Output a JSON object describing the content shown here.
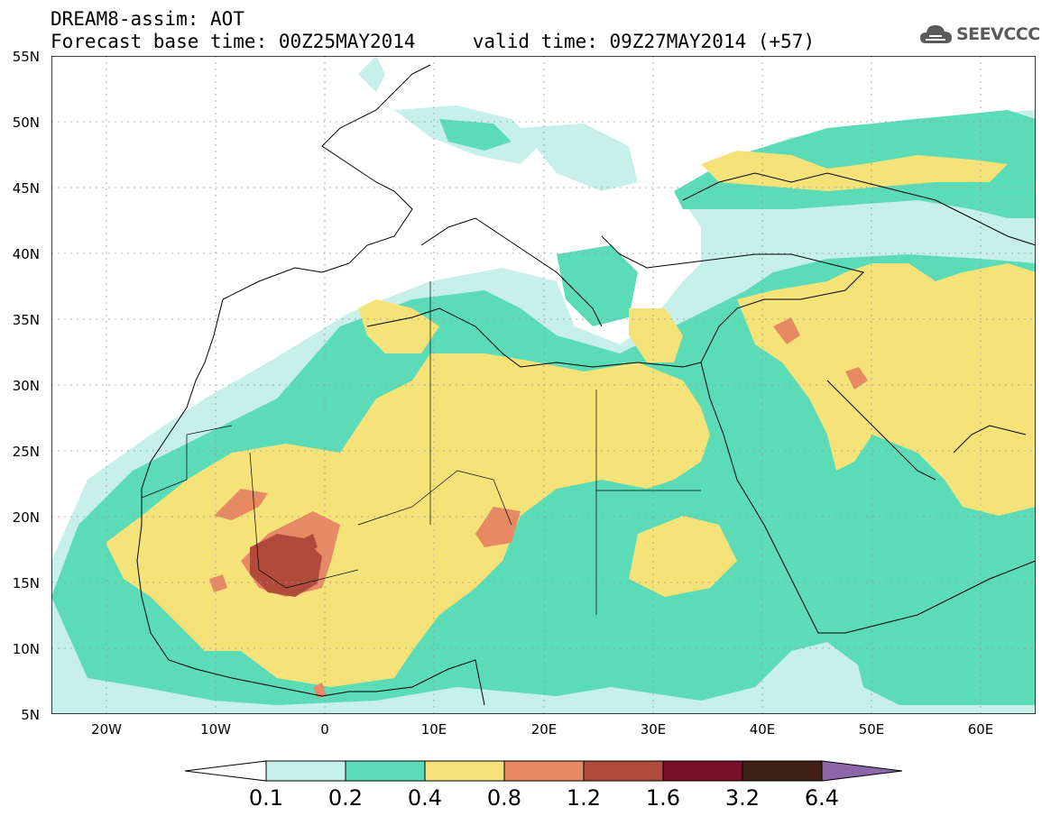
{
  "header": {
    "line1": "DREAM8-assim: AOT",
    "line2": "Forecast base time: 00Z25MAY2014     valid time: 09Z27MAY2014 (+57)"
  },
  "logo": {
    "text": "SEEVCCC",
    "icon": "cloud-icon"
  },
  "map": {
    "variable": "AOT",
    "lat_range": [
      5,
      55
    ],
    "lon_range": [
      -25,
      65
    ],
    "grid": true,
    "lat_labels": [
      "55N",
      "50N",
      "45N",
      "40N",
      "35N",
      "30N",
      "25N",
      "20N",
      "15N",
      "10N",
      "5N"
    ],
    "lon_labels": [
      "20W",
      "10W",
      "0",
      "10E",
      "20E",
      "30E",
      "40E",
      "50E",
      "60E"
    ]
  },
  "legend": {
    "levels": [
      "0.1",
      "0.2",
      "0.4",
      "0.8",
      "1.2",
      "1.6",
      "3.2",
      "6.4"
    ],
    "colors": [
      "#ffffff",
      "#c6f0e8",
      "#5bdcb6",
      "#f5e37a",
      "#e78a64",
      "#b04a3a",
      "#7a0f2a",
      "#3e2114",
      "#8c66a8"
    ]
  },
  "colors": {
    "c01": "#c6f0e8",
    "c02": "#5bdcb6",
    "c04": "#f5e37a",
    "c08": "#e78a64",
    "c12": "#b04a3a",
    "c16": "#7a0f2a"
  }
}
